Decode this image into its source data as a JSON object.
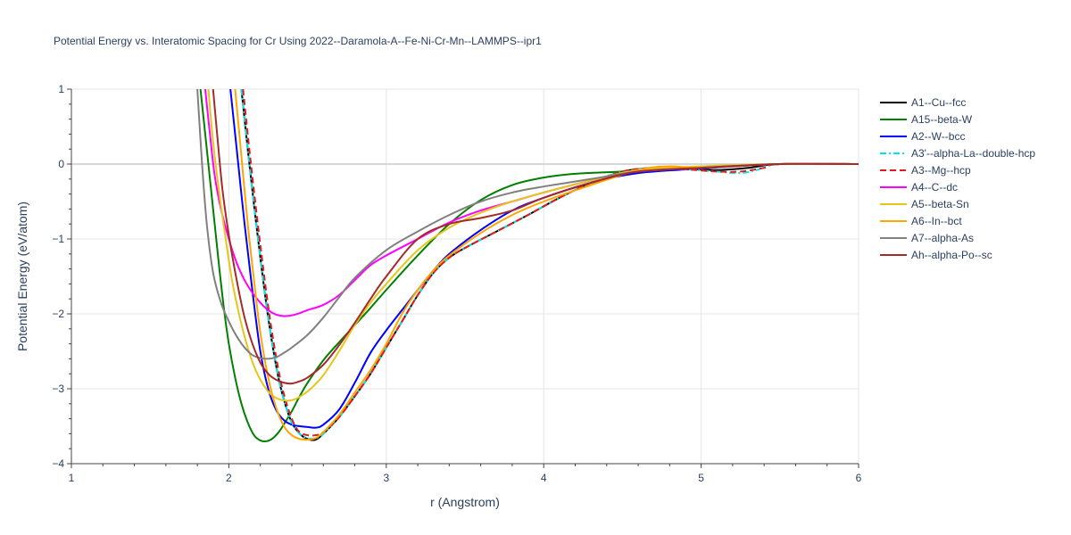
{
  "chart_data": {
    "type": "line",
    "title": "Potential Energy vs. Interatomic Spacing for Cr Using 2022--Daramola-A--Fe-Ni-Cr-Mn--LAMMPS--ipr1",
    "xlabel": "r (Angstrom)",
    "ylabel": "Potential Energy (eV/atom)",
    "xlim": [
      1,
      6
    ],
    "ylim": [
      -4,
      1
    ],
    "xticks": [
      1,
      2,
      3,
      4,
      5,
      6
    ],
    "yticks": [
      1,
      0,
      -1,
      -2,
      -3,
      -4
    ],
    "grid": true,
    "legend_position": "right",
    "series": [
      {
        "name": "A1--Cu--fcc",
        "color": "#000000",
        "dash": "solid",
        "x": [
          2.08,
          2.12,
          2.16,
          2.2,
          2.24,
          2.28,
          2.32,
          2.36,
          2.4,
          2.45,
          2.5,
          2.55,
          2.6,
          2.7,
          2.8,
          2.9,
          3.0,
          3.1,
          3.2,
          3.3,
          3.4,
          3.5,
          3.7,
          3.9,
          4.1,
          4.3,
          4.5,
          4.7,
          4.9,
          5.1,
          5.3,
          5.5,
          6.0
        ],
        "y": [
          1.0,
          0.2,
          -0.55,
          -1.25,
          -1.9,
          -2.45,
          -2.9,
          -3.22,
          -3.45,
          -3.6,
          -3.67,
          -3.68,
          -3.6,
          -3.38,
          -3.1,
          -2.8,
          -2.45,
          -2.1,
          -1.75,
          -1.45,
          -1.25,
          -1.12,
          -0.9,
          -0.68,
          -0.45,
          -0.25,
          -0.1,
          -0.05,
          -0.06,
          -0.08,
          -0.05,
          0.0,
          0.0
        ]
      },
      {
        "name": "A15--beta-W",
        "color": "#008000",
        "dash": "solid",
        "x": [
          1.82,
          1.85,
          1.88,
          1.91,
          1.94,
          1.97,
          2.0,
          2.04,
          2.08,
          2.12,
          2.16,
          2.2,
          2.24,
          2.28,
          2.32,
          2.36,
          2.4,
          2.45,
          2.5,
          2.6,
          2.7,
          2.8,
          2.9,
          3.0,
          3.2,
          3.4,
          3.6,
          3.8,
          4.0,
          4.2,
          4.5,
          5.0,
          5.5,
          6.0
        ],
        "y": [
          1.0,
          0.4,
          -0.2,
          -0.8,
          -1.4,
          -1.95,
          -2.4,
          -2.85,
          -3.2,
          -3.45,
          -3.62,
          -3.69,
          -3.7,
          -3.66,
          -3.57,
          -3.44,
          -3.3,
          -3.1,
          -2.92,
          -2.62,
          -2.38,
          -2.15,
          -1.92,
          -1.68,
          -1.22,
          -0.8,
          -0.48,
          -0.28,
          -0.18,
          -0.13,
          -0.1,
          -0.05,
          0.0,
          0.0
        ]
      },
      {
        "name": "A2--W--bcc",
        "color": "#0000ff",
        "dash": "solid",
        "x": [
          2.01,
          2.05,
          2.1,
          2.15,
          2.2,
          2.25,
          2.3,
          2.35,
          2.4,
          2.45,
          2.5,
          2.55,
          2.6,
          2.7,
          2.8,
          2.9,
          3.0,
          3.1,
          3.2,
          3.3,
          3.4,
          3.6,
          3.8,
          4.0,
          4.3,
          4.6,
          5.0,
          5.5,
          6.0
        ],
        "y": [
          1.0,
          0.2,
          -0.8,
          -1.7,
          -2.5,
          -3.0,
          -3.28,
          -3.42,
          -3.48,
          -3.5,
          -3.51,
          -3.52,
          -3.48,
          -3.28,
          -2.92,
          -2.52,
          -2.22,
          -1.95,
          -1.68,
          -1.42,
          -1.2,
          -0.88,
          -0.62,
          -0.45,
          -0.25,
          -0.12,
          -0.06,
          0.0,
          0.0
        ]
      },
      {
        "name": "A3'--alpha-La--double-hcp",
        "color": "#00e5e5",
        "dash": "dashdot",
        "x": [
          2.08,
          2.12,
          2.16,
          2.2,
          2.24,
          2.28,
          2.32,
          2.36,
          2.4,
          2.45,
          2.5,
          2.55,
          2.6,
          2.7,
          2.8,
          2.9,
          3.0,
          3.1,
          3.2,
          3.3,
          3.4,
          3.5,
          3.7,
          3.9,
          4.1,
          4.3,
          4.5,
          4.7,
          4.9,
          5.1,
          5.25,
          5.35,
          5.5,
          6.0
        ],
        "y": [
          1.0,
          0.2,
          -0.55,
          -1.25,
          -1.9,
          -2.45,
          -2.9,
          -3.22,
          -3.45,
          -3.6,
          -3.66,
          -3.66,
          -3.6,
          -3.38,
          -3.1,
          -2.8,
          -2.45,
          -2.1,
          -1.75,
          -1.45,
          -1.25,
          -1.12,
          -0.9,
          -0.68,
          -0.45,
          -0.25,
          -0.1,
          -0.05,
          -0.07,
          -0.1,
          -0.12,
          -0.08,
          0.0,
          0.0
        ]
      },
      {
        "name": "A3--Mg--hcp",
        "color": "#e31a1c",
        "dash": "dash",
        "x": [
          2.09,
          2.13,
          2.17,
          2.21,
          2.25,
          2.29,
          2.33,
          2.37,
          2.41,
          2.45,
          2.5,
          2.55,
          2.6,
          2.7,
          2.8,
          2.9,
          3.0,
          3.1,
          3.2,
          3.3,
          3.4,
          3.5,
          3.7,
          3.9,
          4.1,
          4.3,
          4.5,
          4.7,
          4.9,
          5.1,
          5.25,
          5.4,
          5.5,
          6.0
        ],
        "y": [
          1.0,
          0.2,
          -0.55,
          -1.25,
          -1.9,
          -2.45,
          -2.9,
          -3.22,
          -3.45,
          -3.58,
          -3.62,
          -3.62,
          -3.58,
          -3.38,
          -3.1,
          -2.8,
          -2.45,
          -2.1,
          -1.75,
          -1.45,
          -1.25,
          -1.12,
          -0.9,
          -0.68,
          -0.45,
          -0.25,
          -0.1,
          -0.05,
          -0.07,
          -0.1,
          -0.1,
          -0.05,
          0.0,
          0.0
        ]
      },
      {
        "name": "A4--C--dc",
        "color": "#ff00ff",
        "dash": "solid",
        "x": [
          1.85,
          1.88,
          1.91,
          1.95,
          2.0,
          2.05,
          2.1,
          2.15,
          2.2,
          2.25,
          2.3,
          2.35,
          2.4,
          2.45,
          2.5,
          2.6,
          2.7,
          2.8,
          2.9,
          3.0,
          3.2,
          3.4,
          3.6,
          3.8,
          4.0,
          4.3,
          4.6,
          5.0,
          5.5,
          6.0
        ],
        "y": [
          1.0,
          0.4,
          -0.15,
          -0.6,
          -1.0,
          -1.32,
          -1.55,
          -1.72,
          -1.85,
          -1.95,
          -2.01,
          -2.03,
          -2.02,
          -1.99,
          -1.95,
          -1.88,
          -1.75,
          -1.55,
          -1.35,
          -1.22,
          -1.0,
          -0.78,
          -0.62,
          -0.5,
          -0.38,
          -0.22,
          -0.1,
          -0.05,
          0.0,
          0.0
        ]
      },
      {
        "name": "A5--beta-Sn",
        "color": "#e6c619",
        "dash": "solid",
        "x": [
          1.87,
          1.9,
          1.94,
          1.98,
          2.02,
          2.07,
          2.12,
          2.17,
          2.22,
          2.27,
          2.32,
          2.37,
          2.42,
          2.47,
          2.52,
          2.6,
          2.7,
          2.8,
          2.9,
          3.0,
          3.2,
          3.4,
          3.6,
          3.8,
          4.0,
          4.3,
          4.6,
          5.0,
          5.5,
          6.0
        ],
        "y": [
          1.0,
          0.3,
          -0.4,
          -1.0,
          -1.55,
          -2.05,
          -2.45,
          -2.75,
          -2.95,
          -3.08,
          -3.14,
          -3.16,
          -3.14,
          -3.08,
          -3.0,
          -2.82,
          -2.5,
          -2.15,
          -1.85,
          -1.6,
          -1.15,
          -0.85,
          -0.65,
          -0.5,
          -0.38,
          -0.22,
          -0.08,
          -0.03,
          0.0,
          0.0
        ]
      },
      {
        "name": "A6--In--bct",
        "color": "#ffa500",
        "dash": "solid",
        "x": [
          2.04,
          2.08,
          2.12,
          2.16,
          2.2,
          2.25,
          2.3,
          2.35,
          2.4,
          2.45,
          2.5,
          2.55,
          2.6,
          2.7,
          2.8,
          2.9,
          3.0,
          3.1,
          3.2,
          3.3,
          3.4,
          3.6,
          3.8,
          4.0,
          4.3,
          4.6,
          4.8,
          5.0,
          5.5,
          6.0
        ],
        "y": [
          1.0,
          0.1,
          -0.8,
          -1.55,
          -2.25,
          -2.85,
          -3.25,
          -3.5,
          -3.62,
          -3.67,
          -3.68,
          -3.66,
          -3.58,
          -3.35,
          -3.05,
          -2.75,
          -2.4,
          -2.0,
          -1.68,
          -1.42,
          -1.22,
          -0.92,
          -0.68,
          -0.5,
          -0.28,
          -0.08,
          -0.03,
          -0.05,
          0.0,
          0.0
        ]
      },
      {
        "name": "A7--alpha-As",
        "color": "#808080",
        "dash": "solid",
        "x": [
          1.8,
          1.83,
          1.86,
          1.9,
          1.95,
          2.0,
          2.05,
          2.1,
          2.15,
          2.2,
          2.25,
          2.3,
          2.35,
          2.4,
          2.5,
          2.6,
          2.7,
          2.8,
          3.0,
          3.2,
          3.4,
          3.6,
          3.8,
          4.0,
          4.3,
          4.6,
          5.0,
          5.5,
          6.0
        ],
        "y": [
          1.0,
          0.0,
          -0.8,
          -1.45,
          -1.85,
          -2.1,
          -2.3,
          -2.45,
          -2.55,
          -2.59,
          -2.6,
          -2.58,
          -2.52,
          -2.45,
          -2.28,
          -2.05,
          -1.78,
          -1.52,
          -1.15,
          -0.9,
          -0.68,
          -0.5,
          -0.38,
          -0.3,
          -0.2,
          -0.1,
          -0.05,
          0.0,
          0.0
        ]
      },
      {
        "name": "Ah--alpha-Po--sc",
        "color": "#a52a2a",
        "dash": "solid",
        "x": [
          1.9,
          1.93,
          1.96,
          2.0,
          2.05,
          2.1,
          2.15,
          2.2,
          2.25,
          2.3,
          2.35,
          2.4,
          2.45,
          2.5,
          2.6,
          2.7,
          2.8,
          2.9,
          3.0,
          3.2,
          3.4,
          3.6,
          3.8,
          4.0,
          4.3,
          4.6,
          5.0,
          5.5,
          6.0
        ],
        "y": [
          1.0,
          0.3,
          -0.35,
          -0.95,
          -1.55,
          -2.05,
          -2.4,
          -2.65,
          -2.8,
          -2.88,
          -2.92,
          -2.93,
          -2.9,
          -2.85,
          -2.68,
          -2.42,
          -2.12,
          -1.8,
          -1.5,
          -1.0,
          -0.8,
          -0.72,
          -0.62,
          -0.45,
          -0.25,
          -0.1,
          -0.05,
          0.0,
          0.0
        ]
      }
    ]
  }
}
